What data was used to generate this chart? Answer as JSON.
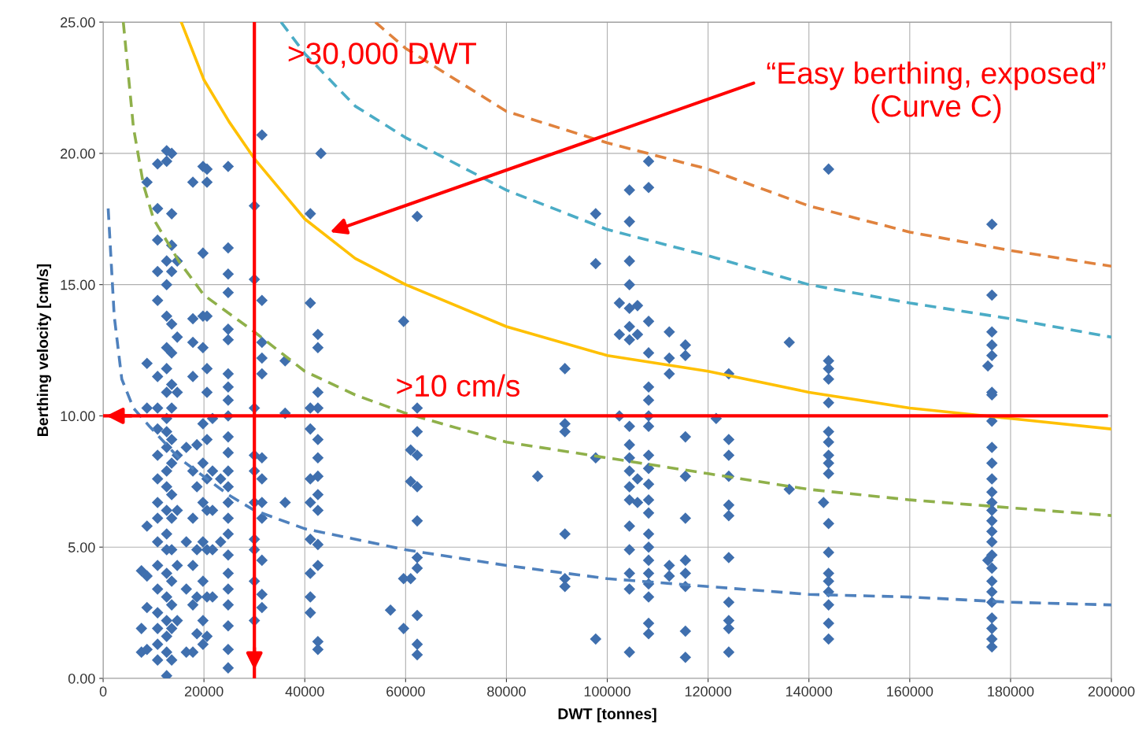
{
  "chart_data": {
    "type": "scatter",
    "xlabel": "DWT [tonnes]",
    "ylabel": "Berthing velocity [cm/s]",
    "xlim": [
      0,
      200000
    ],
    "ylim": [
      0,
      25
    ],
    "xticks": [
      0,
      20000,
      40000,
      60000,
      80000,
      100000,
      120000,
      140000,
      160000,
      180000,
      200000
    ],
    "yticks": [
      {
        "value": 0,
        "label": "0.00"
      },
      {
        "value": 5,
        "label": "5.00"
      },
      {
        "value": 10,
        "label": "10.00"
      },
      {
        "value": 15,
        "label": "15.00"
      },
      {
        "value": 20,
        "label": "20.00"
      },
      {
        "value": 25,
        "label": "25.00"
      }
    ],
    "grid": true,
    "series": [
      {
        "color": "#3f6fae",
        "marker": "diamond",
        "x": [
          7600,
          7600,
          7600,
          8700,
          8700,
          8700,
          8700,
          8700,
          8700,
          8700,
          10800,
          10800,
          10800,
          10800,
          10800,
          10800,
          10800,
          10800,
          10800,
          10800,
          10800,
          10800,
          10800,
          10800,
          10800,
          10800,
          10800,
          10800,
          10800,
          12600,
          12600,
          12600,
          12600,
          12600,
          12600,
          12600,
          12600,
          12600,
          12600,
          12600,
          12600,
          12600,
          12600,
          12600,
          12600,
          12600,
          12600,
          12600,
          12600,
          12600,
          12600,
          13600,
          13600,
          13600,
          13600,
          13600,
          13600,
          13600,
          13600,
          13600,
          13600,
          13600,
          13600,
          13600,
          13600,
          13600,
          13600,
          13600,
          14700,
          14700,
          14700,
          14700,
          14700,
          14700,
          14700,
          16500,
          16500,
          16500,
          16500,
          17800,
          17800,
          17800,
          17800,
          17800,
          17800,
          17800,
          17800,
          17800,
          18600,
          18600,
          18600,
          18600,
          18600,
          19800,
          19800,
          19800,
          19800,
          19800,
          19800,
          19800,
          19800,
          19800,
          19800,
          19800,
          20600,
          20600,
          20600,
          20600,
          20600,
          20600,
          20600,
          20600,
          20600,
          20600,
          20600,
          21700,
          21700,
          21700,
          21700,
          21700,
          23300,
          23300,
          24800,
          24800,
          24800,
          24800,
          24800,
          24800,
          24800,
          24800,
          24800,
          24800,
          24800,
          24800,
          24800,
          24800,
          24800,
          24800,
          24800,
          24800,
          24800,
          24800,
          24800,
          24800,
          24800,
          24800,
          30000,
          30000,
          30000,
          30000,
          30000,
          30000,
          30000,
          30000,
          30000,
          30000,
          31500,
          31500,
          31500,
          31500,
          31500,
          31500,
          31500,
          31500,
          31500,
          31500,
          31500,
          31500,
          36100,
          36100,
          36100,
          41100,
          41100,
          41100,
          41100,
          41100,
          41100,
          41100,
          41100,
          41100,
          41100,
          42600,
          42600,
          42600,
          42600,
          42600,
          42600,
          42600,
          42600,
          42600,
          42600,
          42600,
          42600,
          42600,
          43200,
          57000,
          59600,
          59600,
          59600,
          61000,
          61000,
          61000,
          62300,
          62300,
          62300,
          62300,
          62300,
          62300,
          62300,
          62300,
          62300,
          62300,
          62300,
          86200,
          91600,
          91600,
          91600,
          91600,
          91600,
          91600,
          97700,
          97700,
          97700,
          97700,
          102400,
          102400,
          102400,
          104400,
          104400,
          104400,
          104400,
          104400,
          104400,
          104400,
          104400,
          104400,
          104400,
          104400,
          104400,
          104400,
          104400,
          104400,
          104400,
          104400,
          104400,
          106000,
          106000,
          106000,
          106000,
          108200,
          108200,
          108200,
          108200,
          108200,
          108200,
          108200,
          108200,
          108200,
          108200,
          108200,
          108200,
          108200,
          108200,
          108200,
          108200,
          108200,
          108200,
          108200,
          108200,
          108200,
          112300,
          112300,
          112300,
          112300,
          112300,
          115500,
          115500,
          115500,
          115500,
          115500,
          115500,
          115500,
          115500,
          115500,
          115500,
          121600,
          124100,
          124100,
          124100,
          124100,
          124100,
          124100,
          124100,
          124100,
          124100,
          124100,
          124100,
          136100,
          136100,
          142900,
          143900,
          143900,
          143900,
          143900,
          143900,
          143900,
          143900,
          143900,
          143900,
          143900,
          143900,
          143900,
          143900,
          143900,
          143900,
          143900,
          143900,
          143900,
          175500,
          175500,
          176300,
          176300,
          176300,
          176300,
          176300,
          176300,
          176300,
          176300,
          176300,
          176300,
          176300,
          176300,
          176300,
          176300,
          176300,
          176300,
          176300,
          176300,
          176300,
          176300,
          176300,
          176300,
          176300,
          176300,
          176300,
          176300
        ],
        "values": [
          4.1,
          1.9,
          1.0,
          18.9,
          12.0,
          10.3,
          5.8,
          3.9,
          2.7,
          1.1,
          19.6,
          17.9,
          16.7,
          15.5,
          14.4,
          11.5,
          10.3,
          9.5,
          8.5,
          7.6,
          6.7,
          6.1,
          5.2,
          4.3,
          3.4,
          2.5,
          1.9,
          1.3,
          0.7,
          20.1,
          19.7,
          15.9,
          15.0,
          13.8,
          12.6,
          11.8,
          10.9,
          9.9,
          9.4,
          8.8,
          7.9,
          7.3,
          6.4,
          5.5,
          4.9,
          4.0,
          3.1,
          2.2,
          1.6,
          1.0,
          0.1,
          20.0,
          17.7,
          16.5,
          15.5,
          13.5,
          12.4,
          11.2,
          10.3,
          9.1,
          8.2,
          7.0,
          6.1,
          4.9,
          3.7,
          2.8,
          1.9,
          0.7,
          15.9,
          13.0,
          10.9,
          8.5,
          6.4,
          4.3,
          2.2,
          8.8,
          5.2,
          3.4,
          1.0,
          18.9,
          13.7,
          12.8,
          11.5,
          7.9,
          6.1,
          4.3,
          2.8,
          1.0,
          8.9,
          7.3,
          4.9,
          3.1,
          1.7,
          19.5,
          16.2,
          13.8,
          12.6,
          9.7,
          8.2,
          6.7,
          5.2,
          3.7,
          2.2,
          1.3,
          19.4,
          18.9,
          13.8,
          11.8,
          10.9,
          9.1,
          7.6,
          6.4,
          4.9,
          3.1,
          1.6,
          9.9,
          7.9,
          6.4,
          4.9,
          3.1,
          7.6,
          5.2,
          19.5,
          16.4,
          15.4,
          14.7,
          13.3,
          12.9,
          11.6,
          11.1,
          10.6,
          10.0,
          9.2,
          8.6,
          7.9,
          7.3,
          6.7,
          6.1,
          5.5,
          4.7,
          4.0,
          3.4,
          2.8,
          2.0,
          1.1,
          0.4,
          18.0,
          15.2,
          10.3,
          8.5,
          7.9,
          6.7,
          5.3,
          4.9,
          3.7,
          2.2,
          20.7,
          14.4,
          12.8,
          12.2,
          11.6,
          8.4,
          7.6,
          6.7,
          6.1,
          4.5,
          3.2,
          2.7,
          12.1,
          10.1,
          6.7,
          17.7,
          14.3,
          10.3,
          9.5,
          7.6,
          6.7,
          5.3,
          4.0,
          3.1,
          2.5,
          13.1,
          12.6,
          10.9,
          10.3,
          9.1,
          8.4,
          7.7,
          7.0,
          6.4,
          5.1,
          4.3,
          1.4,
          1.1,
          20.0,
          2.6,
          13.6,
          3.8,
          1.9,
          8.7,
          7.5,
          3.8,
          17.6,
          10.3,
          9.4,
          8.5,
          7.3,
          6.0,
          4.6,
          4.2,
          2.4,
          1.3,
          0.9,
          7.7,
          11.8,
          9.7,
          9.4,
          5.5,
          3.8,
          3.5,
          17.7,
          15.8,
          8.4,
          1.5,
          14.3,
          13.1,
          10.0,
          18.6,
          17.4,
          15.9,
          15.0,
          14.1,
          13.4,
          12.9,
          9.6,
          8.9,
          8.4,
          7.9,
          7.3,
          6.8,
          5.8,
          4.9,
          4.0,
          3.4,
          1.0,
          14.2,
          13.1,
          7.6,
          6.7,
          19.7,
          18.7,
          13.6,
          12.4,
          11.1,
          10.6,
          10.0,
          9.6,
          8.5,
          8.0,
          7.4,
          6.8,
          6.3,
          5.5,
          5.0,
          4.5,
          4.0,
          3.6,
          3.1,
          2.1,
          1.7,
          13.2,
          12.2,
          11.6,
          4.3,
          3.9,
          12.7,
          12.3,
          9.2,
          7.7,
          6.1,
          4.5,
          4.0,
          3.5,
          1.8,
          0.8,
          9.9,
          11.6,
          9.1,
          8.5,
          7.7,
          6.6,
          6.2,
          4.6,
          2.9,
          2.2,
          1.9,
          1.0,
          12.8,
          7.2,
          6.7,
          19.4,
          12.1,
          11.8,
          11.4,
          10.5,
          9.4,
          9.0,
          8.5,
          8.2,
          7.8,
          5.9,
          4.8,
          4.0,
          3.7,
          3.3,
          2.8,
          2.1,
          1.5,
          11.9,
          4.5,
          17.3,
          14.6,
          13.2,
          12.7,
          12.3,
          10.9,
          10.8,
          9.8,
          8.8,
          8.2,
          7.6,
          7.1,
          6.7,
          6.4,
          6.0,
          5.6,
          5.2,
          4.7,
          4.2,
          3.7,
          3.3,
          2.9,
          2.3,
          1.9,
          1.5,
          1.2
        ]
      },
      {
        "type": "line",
        "color": "#4f81bd",
        "line_style": "dashed",
        "x": [
          1000,
          2200,
          3700,
          6000,
          9200,
          15000,
          24800,
          30000,
          40000,
          60000,
          80000,
          100000,
          120000,
          140000,
          160000,
          180000,
          200000
        ],
        "values": [
          17.9,
          13.8,
          11.4,
          10.3,
          9.6,
          8.4,
          7.0,
          6.4,
          5.7,
          4.9,
          4.3,
          3.8,
          3.5,
          3.2,
          3.1,
          2.9,
          2.8
        ]
      },
      {
        "type": "line",
        "color": "#8fb04a",
        "line_style": "dashed",
        "x": [
          4000,
          6000,
          8000,
          10000,
          15000,
          20000,
          30000,
          40000,
          50000,
          60000,
          80000,
          100000,
          120000,
          140000,
          160000,
          180000,
          200000
        ],
        "values": [
          25,
          21.0,
          18.8,
          17.5,
          15.9,
          14.6,
          13.2,
          11.7,
          10.8,
          10.1,
          9.0,
          8.4,
          7.8,
          7.2,
          6.8,
          6.5,
          6.2
        ]
      },
      {
        "type": "line",
        "color": "#ffc000",
        "line_style": "solid",
        "x": [
          15500,
          20000,
          25000,
          30000,
          40000,
          50000,
          60000,
          80000,
          100000,
          120000,
          140000,
          160000,
          180000,
          200000
        ],
        "values": [
          25,
          22.8,
          21.2,
          19.8,
          17.5,
          16.0,
          15.0,
          13.4,
          12.3,
          11.7,
          10.9,
          10.3,
          9.9,
          9.5
        ]
      },
      {
        "type": "line",
        "color": "#4bacc6",
        "line_style": "dashed",
        "x": [
          35300,
          40000,
          50000,
          60000,
          80000,
          100000,
          120000,
          140000,
          160000,
          180000,
          200000
        ],
        "values": [
          25,
          23.8,
          21.8,
          20.6,
          18.6,
          17.1,
          16.1,
          15.0,
          14.3,
          13.7,
          13.0
        ]
      },
      {
        "type": "line",
        "color": "#e0823d",
        "line_style": "dashed",
        "x": [
          54000,
          60000,
          80000,
          100000,
          120000,
          140000,
          160000,
          180000,
          200000
        ],
        "values": [
          25,
          24.0,
          21.6,
          20.4,
          19.4,
          18.0,
          17.0,
          16.3,
          15.7
        ]
      }
    ],
    "ref_lines": [
      {
        "axis": "x",
        "value": 30000,
        "label": ">30,000 DWT",
        "color": "#ff0000"
      },
      {
        "axis": "y",
        "value": 10,
        "label": ">10 cm/s",
        "color": "#ff0000"
      }
    ],
    "annotations": [
      {
        "text": "“Easy berthing, exposed”\n(Curve C)",
        "x": 45000,
        "y": 17
      }
    ]
  }
}
